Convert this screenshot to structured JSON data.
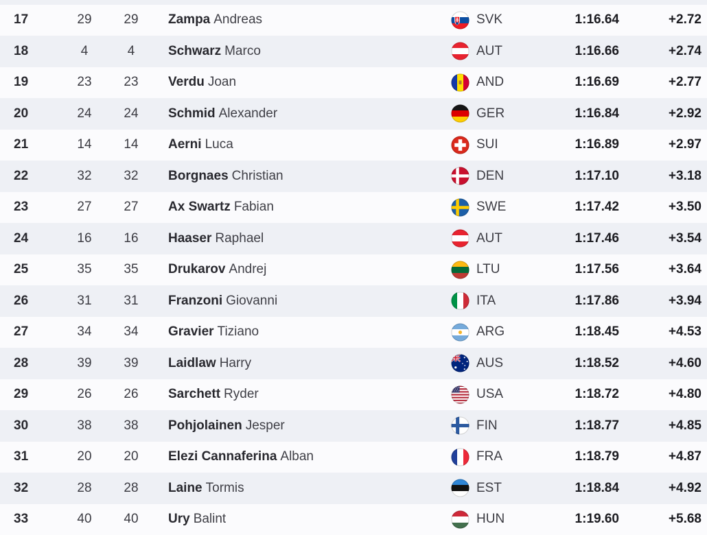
{
  "table": {
    "type": "race-results",
    "colors": {
      "row_base": "#fbfbfd",
      "row_alt": "#eef0f5",
      "rank_text": "#28282e",
      "secondary_text": "#3c3c43",
      "time_text": "#1b1b20"
    },
    "rows": [
      {
        "rank": "17",
        "bib1": "29",
        "bib2": "29",
        "last": "Zampa",
        "first": "Andreas",
        "country": "SVK",
        "flag_icon": "flag-svk",
        "time": "1:16.64",
        "gap": "+2.72"
      },
      {
        "rank": "18",
        "bib1": "4",
        "bib2": "4",
        "last": "Schwarz",
        "first": "Marco",
        "country": "AUT",
        "flag_icon": "flag-aut",
        "time": "1:16.66",
        "gap": "+2.74"
      },
      {
        "rank": "19",
        "bib1": "23",
        "bib2": "23",
        "last": "Verdu",
        "first": "Joan",
        "country": "AND",
        "flag_icon": "flag-and",
        "time": "1:16.69",
        "gap": "+2.77"
      },
      {
        "rank": "20",
        "bib1": "24",
        "bib2": "24",
        "last": "Schmid",
        "first": "Alexander",
        "country": "GER",
        "flag_icon": "flag-ger",
        "time": "1:16.84",
        "gap": "+2.92"
      },
      {
        "rank": "21",
        "bib1": "14",
        "bib2": "14",
        "last": "Aerni",
        "first": "Luca",
        "country": "SUI",
        "flag_icon": "flag-sui",
        "time": "1:16.89",
        "gap": "+2.97"
      },
      {
        "rank": "22",
        "bib1": "32",
        "bib2": "32",
        "last": "Borgnaes",
        "first": "Christian",
        "country": "DEN",
        "flag_icon": "flag-den",
        "time": "1:17.10",
        "gap": "+3.18"
      },
      {
        "rank": "23",
        "bib1": "27",
        "bib2": "27",
        "last": "Ax Swartz",
        "first": "Fabian",
        "country": "SWE",
        "flag_icon": "flag-swe",
        "time": "1:17.42",
        "gap": "+3.50"
      },
      {
        "rank": "24",
        "bib1": "16",
        "bib2": "16",
        "last": "Haaser",
        "first": "Raphael",
        "country": "AUT",
        "flag_icon": "flag-aut",
        "time": "1:17.46",
        "gap": "+3.54"
      },
      {
        "rank": "25",
        "bib1": "35",
        "bib2": "35",
        "last": "Drukarov",
        "first": "Andrej",
        "country": "LTU",
        "flag_icon": "flag-ltu",
        "time": "1:17.56",
        "gap": "+3.64"
      },
      {
        "rank": "26",
        "bib1": "31",
        "bib2": "31",
        "last": "Franzoni",
        "first": "Giovanni",
        "country": "ITA",
        "flag_icon": "flag-ita",
        "time": "1:17.86",
        "gap": "+3.94"
      },
      {
        "rank": "27",
        "bib1": "34",
        "bib2": "34",
        "last": "Gravier",
        "first": "Tiziano",
        "country": "ARG",
        "flag_icon": "flag-arg",
        "time": "1:18.45",
        "gap": "+4.53"
      },
      {
        "rank": "28",
        "bib1": "39",
        "bib2": "39",
        "last": "Laidlaw",
        "first": "Harry",
        "country": "AUS",
        "flag_icon": "flag-aus",
        "time": "1:18.52",
        "gap": "+4.60"
      },
      {
        "rank": "29",
        "bib1": "26",
        "bib2": "26",
        "last": "Sarchett",
        "first": "Ryder",
        "country": "USA",
        "flag_icon": "flag-usa",
        "time": "1:18.72",
        "gap": "+4.80"
      },
      {
        "rank": "30",
        "bib1": "38",
        "bib2": "38",
        "last": "Pohjolainen",
        "first": "Jesper",
        "country": "FIN",
        "flag_icon": "flag-fin",
        "time": "1:18.77",
        "gap": "+4.85"
      },
      {
        "rank": "31",
        "bib1": "20",
        "bib2": "20",
        "last": "Elezi Cannaferina",
        "first": "Alban",
        "country": "FRA",
        "flag_icon": "flag-fra",
        "time": "1:18.79",
        "gap": "+4.87"
      },
      {
        "rank": "32",
        "bib1": "28",
        "bib2": "28",
        "last": "Laine",
        "first": "Tormis",
        "country": "EST",
        "flag_icon": "flag-est",
        "time": "1:18.84",
        "gap": "+4.92"
      },
      {
        "rank": "33",
        "bib1": "40",
        "bib2": "40",
        "last": "Ury",
        "first": "Balint",
        "country": "HUN",
        "flag_icon": "flag-hun",
        "time": "1:19.60",
        "gap": "+5.68"
      }
    ]
  }
}
